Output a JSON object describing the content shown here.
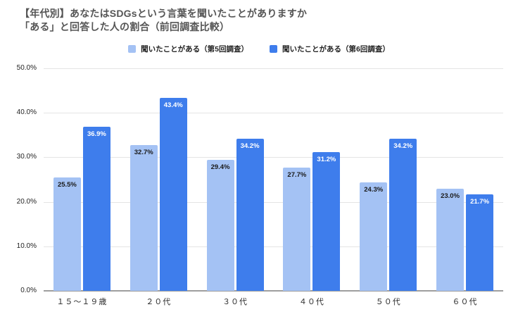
{
  "title": {
    "line1": "【年代別】あなたはSDGsという言葉を聞いたことがありますか",
    "line2": "「ある」と回答した人の割合（前回調査比較）"
  },
  "colors": {
    "survey5": "#A4C2F4",
    "survey6": "#3E7DEC",
    "gridline": "#E4E4E4",
    "baseline": "#9E9E9E",
    "title_text": "#555555"
  },
  "chart_data": {
    "type": "bar",
    "title": "【年代別】あなたはSDGsという言葉を聞いたことがありますか「ある」と回答した人の割合（前回調査比較）",
    "categories": [
      "１５～１９歳",
      "２０代",
      "３０代",
      "４０代",
      "５０代",
      "６０代"
    ],
    "series": [
      {
        "name": "聞いたことがある（第5回調査）",
        "color": "#A4C2F4",
        "label_color": "#1a1a1a",
        "values": [
          25.5,
          32.7,
          29.4,
          27.7,
          24.3,
          23.0
        ],
        "value_labels": [
          "25.5%",
          "32.7%",
          "29.4%",
          "27.7%",
          "24.3%",
          "23.0%"
        ]
      },
      {
        "name": "聞いたことがある（第6回調査）",
        "color": "#3E7DEC",
        "label_color": "#ffffff",
        "values": [
          36.9,
          43.4,
          34.2,
          31.2,
          34.2,
          21.7
        ],
        "value_labels": [
          "36.9%",
          "43.4%",
          "34.2%",
          "31.2%",
          "34.2%",
          "21.7%"
        ]
      }
    ],
    "xlabel": "",
    "ylabel": "",
    "ylim": [
      0,
      50
    ],
    "yticks": [
      "0.0%",
      "10.0%",
      "20.0%",
      "30.0%",
      "40.0%",
      "50.0%"
    ],
    "grid": true,
    "legend_position": "top-center"
  }
}
